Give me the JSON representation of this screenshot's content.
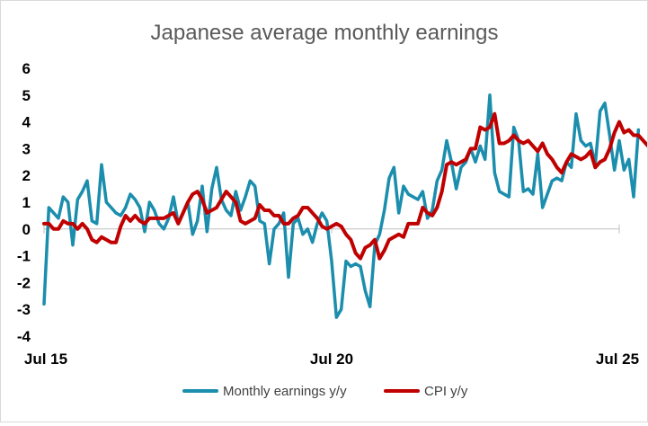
{
  "chart_data": {
    "type": "line",
    "title": "Japanese average monthly earnings",
    "xlabel": "",
    "ylabel": "",
    "ylim": [
      -4,
      6
    ],
    "yticks": [
      6,
      5,
      4,
      3,
      2,
      1,
      0,
      -1,
      -2,
      -3,
      -4
    ],
    "xlim": [
      "2015-07",
      "2025-07"
    ],
    "xticks": [
      {
        "label": "Jul 15",
        "value": "2015-07"
      },
      {
        "label": "Jul 20",
        "value": "2020-07"
      },
      {
        "label": "Jul 25",
        "value": "2025-07"
      }
    ],
    "grid": false,
    "legend": "bottom",
    "series": [
      {
        "name": "Monthly earnings y/y",
        "color": "#1b8dad",
        "start": "2015-07",
        "values": [
          -2.8,
          0.8,
          0.6,
          0.4,
          1.2,
          1.0,
          -0.6,
          1.1,
          1.4,
          1.8,
          0.3,
          0.2,
          2.4,
          1.0,
          0.8,
          0.6,
          0.5,
          0.8,
          1.3,
          1.1,
          0.8,
          -0.1,
          1.0,
          0.7,
          0.2,
          0.0,
          0.4,
          1.2,
          0.2,
          0.6,
          1.0,
          -0.2,
          0.3,
          1.6,
          -0.1,
          1.5,
          2.3,
          1.1,
          0.7,
          0.5,
          1.4,
          0.7,
          1.2,
          1.8,
          1.6,
          0.3,
          0.2,
          -1.3,
          0.0,
          0.2,
          0.6,
          -1.8,
          0.2,
          0.4,
          -0.2,
          0.0,
          -0.5,
          0.2,
          0.6,
          0.3,
          -1.2,
          -3.3,
          -3.0,
          -1.2,
          -1.4,
          -1.3,
          -1.4,
          -2.3,
          -2.9,
          -0.6,
          -0.2,
          0.7,
          1.9,
          2.3,
          0.6,
          1.6,
          1.3,
          1.2,
          1.1,
          1.4,
          0.4,
          0.7,
          1.8,
          2.2,
          3.3,
          2.5,
          1.5,
          2.3,
          2.5,
          3.0,
          2.5,
          3.1,
          2.6,
          5.0,
          2.1,
          1.4,
          1.3,
          1.2,
          3.8,
          3.3,
          1.4,
          1.5,
          1.3,
          2.8,
          0.8,
          1.3,
          1.8,
          1.9,
          1.8,
          2.5,
          2.3,
          4.3,
          3.3,
          3.1,
          3.2,
          2.4,
          4.4,
          4.7,
          3.5,
          2.2,
          3.3,
          2.2,
          2.6,
          1.2,
          3.7
        ]
      },
      {
        "name": "CPI y/y",
        "color": "#c00000",
        "start": "2015-07",
        "values": [
          0.2,
          0.2,
          0.0,
          0.0,
          0.3,
          0.2,
          0.2,
          0.0,
          0.2,
          0.0,
          -0.4,
          -0.5,
          -0.3,
          -0.4,
          -0.5,
          -0.5,
          0.1,
          0.5,
          0.3,
          0.5,
          0.3,
          0.2,
          0.4,
          0.4,
          0.4,
          0.4,
          0.5,
          0.6,
          0.2,
          0.6,
          1.0,
          1.3,
          1.4,
          1.1,
          0.6,
          0.7,
          0.8,
          1.1,
          1.4,
          1.2,
          1.0,
          0.3,
          0.2,
          0.3,
          0.4,
          0.9,
          0.7,
          0.7,
          0.5,
          0.5,
          0.2,
          0.2,
          0.4,
          0.5,
          0.8,
          0.8,
          0.6,
          0.4,
          0.1,
          0.0,
          0.1,
          0.2,
          0.1,
          -0.2,
          -0.4,
          -0.9,
          -1.1,
          -0.7,
          -0.6,
          -0.4,
          -1.1,
          -0.8,
          -0.4,
          -0.3,
          -0.2,
          -0.3,
          0.2,
          0.2,
          0.2,
          0.8,
          0.6,
          0.5,
          0.8,
          1.4,
          2.4,
          2.5,
          2.4,
          2.5,
          2.6,
          3.0,
          3.0,
          3.8,
          3.7,
          3.8,
          4.3,
          3.2,
          3.2,
          3.3,
          3.5,
          3.3,
          3.2,
          3.3,
          3.1,
          2.9,
          3.2,
          2.8,
          2.6,
          2.3,
          2.1,
          2.5,
          2.8,
          2.7,
          2.6,
          2.7,
          2.9,
          2.3,
          2.5,
          2.6,
          3.0,
          3.6,
          4.0,
          3.6,
          3.7,
          3.5,
          3.5,
          3.3,
          3.1
        ]
      }
    ]
  }
}
